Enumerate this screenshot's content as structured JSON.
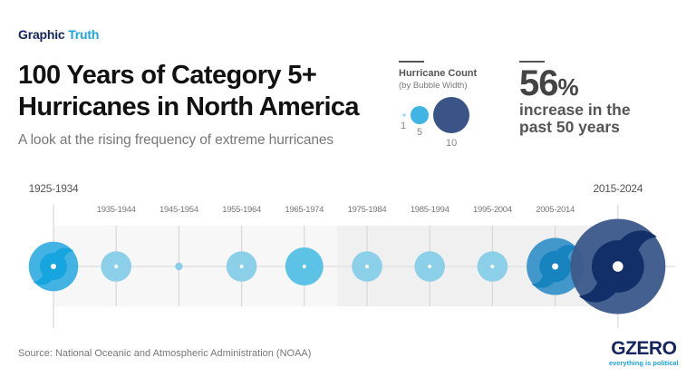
{
  "header": {
    "kicker_part1": "Graphic",
    "kicker_part2": "Truth",
    "title_line1": "100 Years of Category 5+",
    "title_line2": "Hurricanes in North America",
    "subtitle": "A look at the rising frequency of extreme hurricanes"
  },
  "legend": {
    "title": "Hurricane Count",
    "subtitle": "(by Bubble Width)",
    "items": [
      {
        "label": "1",
        "value": 1,
        "color": "#a6dbe9"
      },
      {
        "label": "5",
        "value": 5,
        "color": "#3fb5e6"
      },
      {
        "label": "10",
        "value": 10,
        "color": "#3b5487"
      }
    ]
  },
  "stat": {
    "value": "56",
    "unit": "%",
    "text_line1": "increase in the",
    "text_line2": "past 50 years"
  },
  "chart_data": {
    "type": "bubble-timeline",
    "encoding": "bubble width = hurricane count",
    "categories": [
      "1925-1934",
      "1935-1944",
      "1945-1954",
      "1955-1964",
      "1965-1974",
      "1975-1984",
      "1985-1994",
      "1995-2004",
      "2005-2014",
      "2015-2024"
    ],
    "values": [
      13,
      8,
      2,
      8,
      10,
      8,
      8,
      8,
      15,
      25
    ],
    "highlighted": [
      "1925-1934",
      "2005-2014",
      "2015-2024"
    ],
    "colors": {
      "light": "#8ccfe8",
      "medium": "#5cc2e6",
      "1925-1934": "#3db1e3",
      "2005-2014": "#3c95c9",
      "2015-2024": "#3e5b8c",
      "swirl_1925-1934": "#17a5df",
      "swirl_2005-2014": "#1783bf",
      "swirl_2015-2024": "#122f69"
    }
  },
  "footer": {
    "source": "Source: National Oceanic and Atmospheric Administration (NOAA)",
    "logo_brand": "GZERO",
    "logo_tagline": "everything is political"
  }
}
